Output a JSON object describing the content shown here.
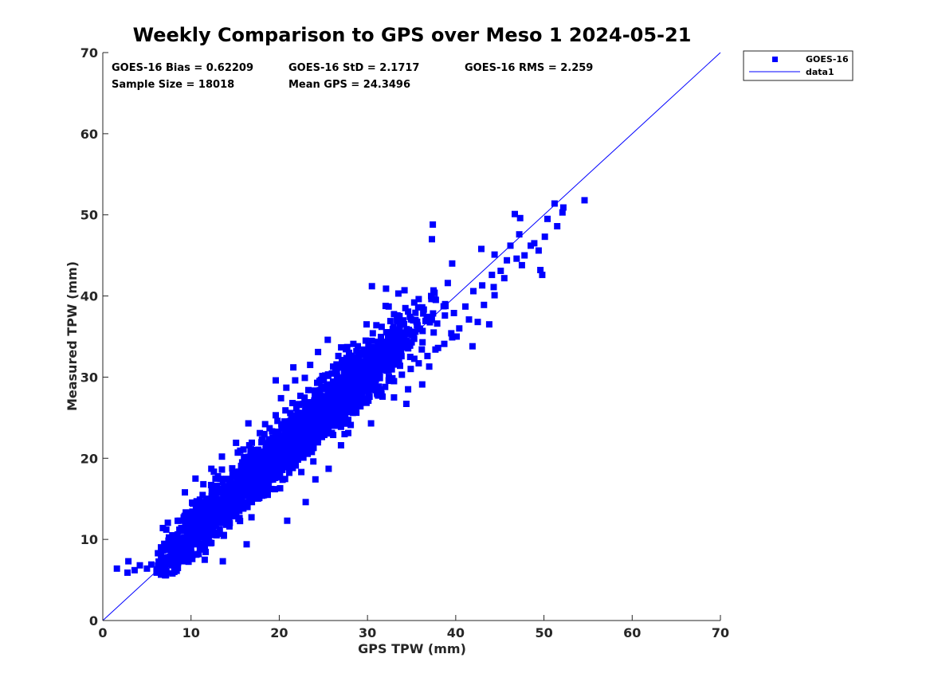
{
  "chart_data": {
    "type": "scatter",
    "title": "Weekly Comparison to GPS over Meso 1 2024-05-21",
    "xlabel": "GPS TPW (mm)",
    "ylabel": "Measured TPW (mm)",
    "xlim": [
      0,
      70
    ],
    "ylim": [
      0,
      70
    ],
    "xticks": [
      "0",
      "10",
      "20",
      "30",
      "40",
      "50",
      "60",
      "70"
    ],
    "yticks": [
      "0",
      "10",
      "20",
      "30",
      "40",
      "50",
      "60",
      "70"
    ],
    "grid": false,
    "legend_position": "outside-top-right",
    "stats": {
      "bias": "GOES-16 Bias = 0.62209",
      "std": "GOES-16 StD = 2.1717",
      "rms": "GOES-16 RMS = 2.259",
      "sample_size": "Sample Size = 18018",
      "mean_gps": "Mean GPS = 24.3496"
    },
    "series": [
      {
        "name": "GOES-16",
        "type": "scatter",
        "marker": "square",
        "color": "#0000ff",
        "points": [
          [
            1.6,
            6.4
          ],
          [
            2.8,
            5.9
          ],
          [
            2.9,
            7.3
          ],
          [
            3.6,
            6.2
          ],
          [
            4.2,
            6.8
          ],
          [
            5.0,
            6.4
          ],
          [
            5.5,
            6.9
          ],
          [
            6.1,
            5.9
          ],
          [
            7.2,
            6.1
          ],
          [
            8.1,
            6.7
          ],
          [
            7.8,
            8.6
          ],
          [
            7.2,
            11.2
          ],
          [
            9.3,
            15.8
          ],
          [
            10.5,
            17.5
          ],
          [
            10.2,
            14.4
          ],
          [
            12.6,
            16.1
          ],
          [
            13.5,
            20.2
          ],
          [
            13.6,
            7.3
          ],
          [
            16.3,
            9.4
          ],
          [
            15.1,
            21.9
          ],
          [
            16.5,
            24.3
          ],
          [
            18.4,
            24.2
          ],
          [
            17.4,
            18.2
          ],
          [
            19.6,
            25.3
          ],
          [
            20.1,
            16.3
          ],
          [
            20.9,
            12.3
          ],
          [
            22.5,
            18.3
          ],
          [
            22.8,
            23.6
          ],
          [
            23.0,
            14.6
          ],
          [
            24.1,
            17.4
          ],
          [
            25.6,
            18.7
          ],
          [
            27.0,
            21.6
          ],
          [
            28.1,
            24.1
          ],
          [
            30.4,
            24.3
          ],
          [
            31.7,
            27.6
          ],
          [
            32.4,
            29.6
          ],
          [
            33.0,
            27.5
          ],
          [
            34.4,
            26.7
          ],
          [
            34.6,
            28.5
          ],
          [
            36.2,
            29.1
          ],
          [
            37.0,
            31.3
          ],
          [
            37.5,
            35.5
          ],
          [
            38.0,
            33.6
          ],
          [
            39.5,
            35.4
          ],
          [
            40.1,
            35.0
          ],
          [
            39.8,
            37.9
          ],
          [
            41.5,
            37.1
          ],
          [
            41.9,
            33.8
          ],
          [
            42.5,
            36.8
          ],
          [
            43.2,
            38.9
          ],
          [
            43.8,
            36.5
          ],
          [
            44.4,
            40.1
          ],
          [
            44.1,
            42.6
          ],
          [
            45.5,
            42.2
          ],
          [
            45.8,
            44.4
          ],
          [
            46.2,
            46.2
          ],
          [
            47.2,
            47.6
          ],
          [
            47.8,
            45.0
          ],
          [
            48.9,
            46.5
          ],
          [
            49.8,
            42.6
          ],
          [
            49.6,
            43.2
          ],
          [
            50.4,
            49.5
          ],
          [
            51.2,
            51.4
          ],
          [
            52.1,
            50.3
          ],
          [
            52.2,
            50.9
          ],
          [
            51.5,
            48.6
          ],
          [
            54.6,
            51.8
          ],
          [
            46.7,
            50.1
          ],
          [
            47.3,
            49.6
          ],
          [
            37.4,
            48.8
          ],
          [
            37.3,
            47.0
          ],
          [
            30.5,
            41.2
          ],
          [
            32.4,
            38.7
          ],
          [
            34.2,
            40.7
          ],
          [
            32.1,
            40.9
          ],
          [
            33.5,
            40.3
          ],
          [
            37.6,
            40.4
          ],
          [
            39.1,
            41.6
          ],
          [
            39.6,
            44.0
          ],
          [
            38.8,
            39.0
          ],
          [
            42.9,
            45.8
          ],
          [
            44.4,
            45.1
          ],
          [
            44.3,
            41.1
          ],
          [
            28.4,
            34.1
          ],
          [
            27.7,
            33.7
          ],
          [
            29.9,
            36.5
          ],
          [
            26.7,
            32.6
          ],
          [
            25.5,
            34.6
          ],
          [
            24.4,
            33.1
          ],
          [
            21.8,
            29.6
          ],
          [
            20.8,
            28.7
          ],
          [
            19.6,
            29.6
          ],
          [
            20.2,
            27.4
          ],
          [
            21.6,
            31.2
          ],
          [
            23.5,
            31.5
          ],
          [
            22.9,
            29.9
          ],
          [
            17.8,
            23.1
          ],
          [
            16.8,
            21.1
          ],
          [
            15.3,
            20.7
          ],
          [
            12.3,
            18.7
          ],
          [
            11.4,
            16.8
          ],
          [
            13.5,
            18.6
          ],
          [
            9.7,
            13.3
          ],
          [
            8.7,
            12.3
          ],
          [
            8.9,
            11.4
          ],
          [
            11.0,
            14.9
          ],
          [
            7.9,
            10.2
          ],
          [
            8.4,
            9.5
          ],
          [
            10.1,
            11.5
          ],
          [
            11.8,
            13.1
          ],
          [
            12.9,
            14.9
          ],
          [
            13.9,
            16.3
          ],
          [
            14.7,
            18.1
          ],
          [
            15.8,
            19.5
          ],
          [
            16.6,
            21.6
          ],
          [
            18.1,
            22.3
          ],
          [
            18.9,
            23.7
          ],
          [
            19.8,
            24.6
          ],
          [
            20.7,
            25.9
          ],
          [
            21.5,
            26.8
          ],
          [
            22.4,
            27.7
          ],
          [
            23.3,
            28.4
          ],
          [
            24.3,
            29.3
          ],
          [
            25.2,
            30.2
          ],
          [
            26.1,
            31.3
          ],
          [
            27.1,
            32.1
          ],
          [
            27.9,
            33.0
          ],
          [
            28.9,
            33.8
          ],
          [
            29.8,
            34.5
          ],
          [
            30.6,
            35.4
          ],
          [
            31.6,
            36.2
          ],
          [
            32.6,
            36.9
          ],
          [
            33.4,
            37.6
          ],
          [
            34.3,
            38.5
          ],
          [
            35.3,
            39.2
          ],
          [
            36.2,
            38.6
          ],
          [
            36.8,
            37.4
          ],
          [
            8.2,
            6.4
          ],
          [
            9.1,
            7.3
          ],
          [
            10.2,
            8.1
          ],
          [
            11.0,
            8.8
          ],
          [
            12.1,
            9.6
          ],
          [
            12.9,
            10.5
          ],
          [
            14.0,
            11.8
          ],
          [
            14.8,
            12.9
          ],
          [
            15.9,
            13.8
          ],
          [
            16.9,
            14.6
          ],
          [
            17.8,
            15.7
          ],
          [
            18.8,
            16.6
          ],
          [
            19.7,
            17.8
          ],
          [
            20.6,
            18.9
          ],
          [
            21.6,
            19.6
          ],
          [
            22.6,
            20.7
          ],
          [
            23.5,
            21.6
          ],
          [
            24.4,
            22.3
          ],
          [
            25.4,
            23.1
          ],
          [
            26.3,
            24.0
          ],
          [
            27.3,
            24.9
          ],
          [
            28.2,
            25.7
          ],
          [
            29.2,
            26.4
          ],
          [
            30.1,
            27.1
          ],
          [
            31.1,
            27.9
          ],
          [
            32.0,
            28.8
          ],
          [
            33.0,
            29.5
          ],
          [
            33.9,
            30.3
          ],
          [
            34.9,
            31.0
          ],
          [
            35.8,
            31.7
          ],
          [
            36.8,
            32.6
          ],
          [
            37.7,
            33.4
          ],
          [
            38.7,
            34.1
          ],
          [
            39.6,
            34.9
          ],
          [
            40.4,
            36.0
          ],
          [
            6.6,
            7.9
          ],
          [
            7.5,
            8.9
          ],
          [
            9.6,
            9.9
          ],
          [
            10.6,
            10.4
          ],
          [
            11.5,
            12.2
          ],
          [
            13.4,
            13.3
          ],
          [
            15.4,
            15.6
          ],
          [
            17.3,
            17.9
          ],
          [
            19.2,
            20.4
          ],
          [
            21.1,
            22.2
          ],
          [
            23.0,
            24.6
          ],
          [
            24.9,
            26.4
          ],
          [
            26.8,
            28.3
          ],
          [
            28.6,
            30.1
          ],
          [
            30.4,
            31.9
          ],
          [
            32.3,
            33.6
          ],
          [
            34.1,
            35.1
          ],
          [
            35.8,
            35.9
          ],
          [
            37.9,
            36.6
          ],
          [
            41.1,
            38.7
          ],
          [
            42.0,
            40.6
          ],
          [
            43.0,
            41.3
          ],
          [
            45.1,
            43.1
          ],
          [
            46.9,
            44.6
          ],
          [
            48.5,
            46.2
          ],
          [
            50.1,
            47.3
          ],
          [
            49.4,
            45.6
          ],
          [
            47.5,
            43.8
          ]
        ]
      },
      {
        "name": "data1",
        "type": "line",
        "color": "#0000ff",
        "x": [
          0,
          70
        ],
        "y": [
          0,
          70
        ]
      }
    ]
  }
}
